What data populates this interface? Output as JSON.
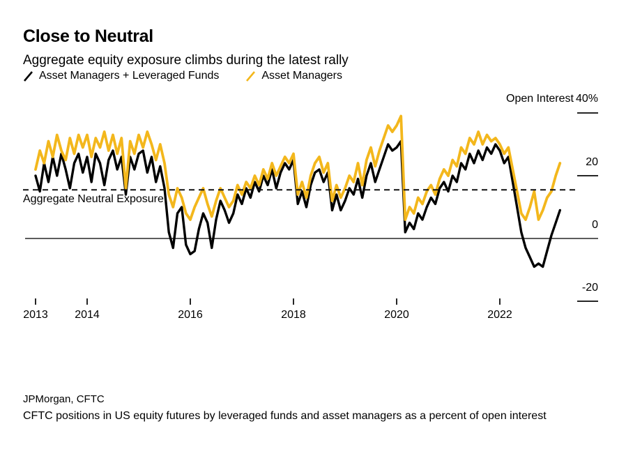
{
  "title": "Close to Neutral",
  "subtitle": "Aggregate equity exposure climbs during the latest rally",
  "legend": {
    "items": [
      {
        "label": "Asset Managers + Leveraged Funds",
        "color": "#000000"
      },
      {
        "label": "Asset Managers",
        "color": "#F3B71C"
      }
    ]
  },
  "y_axis": {
    "title": "Open Interest",
    "top_label": "40%"
  },
  "annotations": {
    "neutral_label": "Aggregate Neutral Exposure"
  },
  "source": "JPMorgan, CFTC",
  "note": "CFTC positions in US equity futures by leveraged funds and asset managers as a percent of open interest",
  "colors": {
    "black_series": "#000000",
    "yellow_series": "#F3B71C",
    "axis_line": "#262626",
    "dashed_line": "#111111"
  },
  "chart_data": {
    "type": "line",
    "title": "Close to Neutral",
    "subtitle": "Aggregate equity exposure climbs during the latest rally",
    "y_unit": "% of open interest",
    "x_start_year": 2013,
    "x_step_months": 1,
    "x_end_year_approx": 2023.17,
    "x_tick_years": [
      2013,
      2014,
      2016,
      2018,
      2020,
      2022
    ],
    "x_tick_labels": [
      "2013",
      "2014",
      "2016",
      "2018",
      "2020",
      "2022"
    ],
    "y_ticks": [
      40,
      20,
      0,
      -20
    ],
    "y_tick_labels": [
      "40%",
      "20",
      "0",
      "-20"
    ],
    "ylim": [
      -28,
      44
    ],
    "grid": false,
    "zero_line": true,
    "neutral_line": {
      "value": 15.5,
      "label": "Aggregate Neutral Exposure",
      "style": "dashed"
    },
    "legend_position": "top-left",
    "series": [
      {
        "name": "Asset Managers + Leveraged Funds",
        "color": "#000000",
        "values": [
          20,
          15,
          24,
          18,
          26,
          20,
          27,
          22,
          16,
          24,
          27,
          21,
          26,
          18,
          27,
          24,
          17,
          25,
          28,
          22,
          26,
          14,
          26,
          22,
          27,
          28,
          21,
          26,
          18,
          23,
          16,
          2,
          -3,
          8,
          10,
          -2,
          -5,
          -4,
          3,
          8,
          5,
          -3,
          6,
          12,
          9,
          5,
          8,
          14,
          11,
          16,
          13,
          18,
          15,
          20,
          17,
          22,
          16,
          21,
          24,
          22,
          25,
          11,
          15,
          10,
          17,
          21,
          22,
          18,
          21,
          9,
          14,
          9,
          12,
          16,
          14,
          19,
          13,
          20,
          24,
          18,
          22,
          26,
          30,
          28,
          29,
          31,
          2,
          5,
          3,
          8,
          6,
          10,
          13,
          11,
          16,
          18,
          15,
          20,
          18,
          24,
          22,
          27,
          24,
          28,
          25,
          29,
          27,
          30,
          28,
          24,
          26,
          18,
          10,
          2,
          -3,
          -6,
          -9,
          -8,
          -9,
          -4,
          1,
          5,
          9
        ]
      },
      {
        "name": "Asset Managers",
        "color": "#F3B71C",
        "values": [
          22,
          28,
          24,
          31,
          26,
          33,
          28,
          25,
          32,
          27,
          33,
          29,
          33,
          26,
          32,
          29,
          34,
          28,
          33,
          27,
          32,
          16,
          31,
          27,
          33,
          29,
          34,
          30,
          25,
          30,
          24,
          14,
          10,
          16,
          13,
          8,
          6,
          10,
          13,
          16,
          11,
          7,
          12,
          16,
          13,
          10,
          12,
          17,
          14,
          18,
          16,
          20,
          17,
          22,
          19,
          24,
          20,
          23,
          26,
          24,
          27,
          14,
          18,
          13,
          20,
          24,
          26,
          21,
          24,
          12,
          17,
          13,
          16,
          20,
          18,
          24,
          17,
          25,
          29,
          23,
          28,
          32,
          36,
          34,
          36,
          39,
          6,
          10,
          8,
          13,
          11,
          15,
          17,
          14,
          19,
          22,
          20,
          25,
          23,
          29,
          27,
          32,
          30,
          34,
          30,
          33,
          31,
          32,
          30,
          27,
          29,
          22,
          15,
          8,
          6,
          10,
          15,
          6,
          9,
          13,
          15,
          20,
          24
        ]
      }
    ]
  }
}
